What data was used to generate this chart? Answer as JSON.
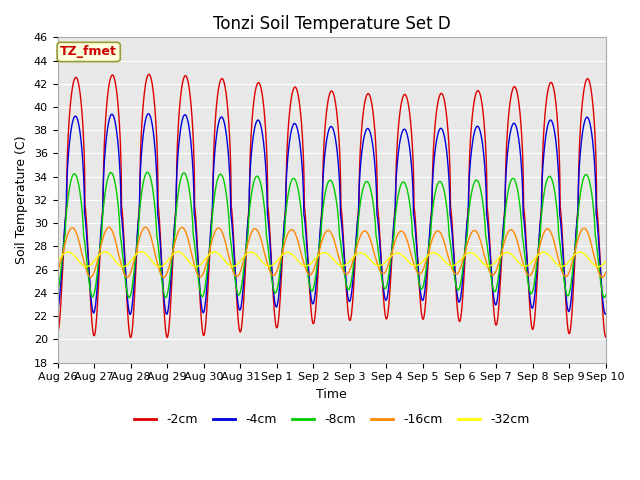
{
  "title": "Tonzi Soil Temperature Set D",
  "xlabel": "Time",
  "ylabel": "Soil Temperature (C)",
  "ylim": [
    18,
    46
  ],
  "yticks": [
    18,
    20,
    22,
    24,
    26,
    28,
    30,
    32,
    34,
    36,
    38,
    40,
    42,
    44,
    46
  ],
  "xtick_labels": [
    "Aug 26",
    "Aug 27",
    "Aug 28",
    "Aug 29",
    "Aug 30",
    "Aug 31",
    "Sep 1",
    "Sep 2",
    "Sep 3",
    "Sep 4",
    "Sep 5",
    "Sep 6",
    "Sep 7",
    "Sep 8",
    "Sep 9",
    "Sep 10"
  ],
  "annotation_label": "TZ_fmet",
  "annotation_fg": "#cc0000",
  "annotation_bg": "#ffffdd",
  "annotation_edge": "#999933",
  "series": [
    {
      "label": "-2cm",
      "color": "#dd0000",
      "amplitude": 10.5,
      "mean": 31.5,
      "phase": 0.0,
      "phase_lag": 0.0,
      "power": 0.45,
      "trend": -0.12
    },
    {
      "label": "-4cm",
      "color": "#0000dd",
      "amplitude": 8.0,
      "mean": 30.8,
      "phase": 0.0,
      "phase_lag": 0.08,
      "power": 0.5,
      "trend": -0.1
    },
    {
      "label": "-8cm",
      "color": "#00cc00",
      "amplitude": 5.0,
      "mean": 29.0,
      "phase": 0.0,
      "phase_lag": 0.25,
      "power": 0.65,
      "trend": -0.07
    },
    {
      "label": "-16cm",
      "color": "#ff8800",
      "amplitude": 2.0,
      "mean": 27.5,
      "phase": 0.0,
      "phase_lag": 0.6,
      "power": 0.9,
      "trend": -0.03
    },
    {
      "label": "-32cm",
      "color": "#ffff00",
      "amplitude": 0.6,
      "mean": 26.9,
      "phase": 0.0,
      "phase_lag": 1.3,
      "power": 1.0,
      "trend": -0.01
    }
  ],
  "n_days": 15,
  "ppd": 240,
  "bg_color": "#e8e8e8",
  "figsize": [
    6.4,
    4.8
  ],
  "dpi": 100
}
